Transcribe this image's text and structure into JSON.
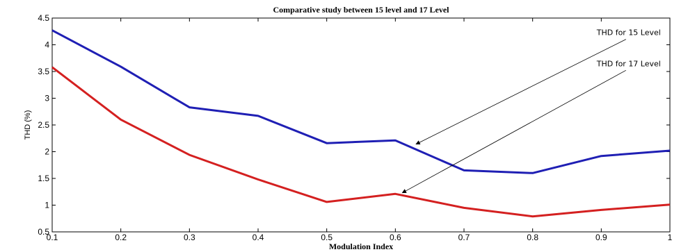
{
  "chart_data": {
    "type": "line",
    "title": "Comparative study between 15 level and 17 Level",
    "xlabel": "Modulation Index",
    "ylabel": "THD (%)",
    "x": [
      0.1,
      0.2,
      0.3,
      0.4,
      0.5,
      0.6,
      0.7,
      0.8,
      0.9,
      1.0
    ],
    "xlim": [
      0.1,
      1.0
    ],
    "ylim": [
      0.5,
      4.5
    ],
    "xticks": [
      "0.1",
      "0.2",
      "0.3",
      "0.4",
      "0.5",
      "0.6",
      "0.7",
      "0.8",
      "0.9",
      "1"
    ],
    "yticks": [
      "0.5",
      "1",
      "1.5",
      "2",
      "2.5",
      "3",
      "3.5",
      "4",
      "4.5"
    ],
    "grid": false,
    "series": [
      {
        "key": "s15",
        "color": "#1f1fb4",
        "values": [
          4.27,
          3.59,
          2.83,
          2.67,
          2.16,
          2.21,
          1.65,
          1.6,
          1.92,
          2.02
        ]
      },
      {
        "key": "s17",
        "color": "#d42020",
        "values": [
          3.58,
          2.6,
          1.94,
          1.48,
          1.06,
          1.21,
          0.95,
          0.79,
          0.91,
          1.01
        ]
      }
    ],
    "annotations": [
      {
        "text": "THD for 15 Level",
        "x": 0.63,
        "y": 2.14,
        "text_x": 0.94,
        "text_y": 4.18
      },
      {
        "text": "THD for 17 Level",
        "x": 0.61,
        "y": 1.23,
        "text_x": 0.94,
        "text_y": 3.6
      }
    ]
  }
}
